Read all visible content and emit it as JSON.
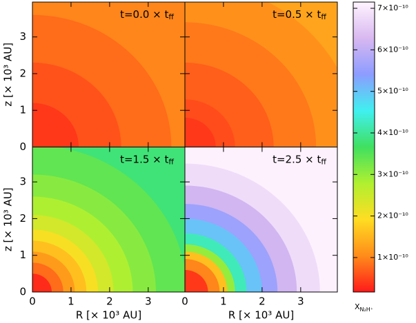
{
  "chart_data": [
    {
      "type": "contour",
      "title": "t=0.0 × t",
      "title_sub": "ff",
      "ylabel": "z  [× 10³ AU]",
      "xlim": [
        0,
        3.95
      ],
      "ylim": [
        0,
        3.95
      ],
      "xticks": [
        0,
        1,
        2,
        3
      ],
      "yticks": [
        0,
        1,
        2,
        3
      ],
      "r": [
        1.2,
        2.3,
        3.6,
        5.6
      ],
      "values": [
        0.4,
        0.6,
        0.8,
        1.0
      ]
    },
    {
      "type": "contour",
      "title": "t=0.5 × t",
      "title_sub": "ff",
      "xlim": [
        0,
        3.95
      ],
      "ylim": [
        0,
        3.95
      ],
      "xticks": [
        0,
        1,
        2,
        3
      ],
      "yticks": [
        0,
        1,
        2,
        3
      ],
      "r": [
        0.8,
        1.3,
        2.3,
        3.4,
        4.5,
        5.6
      ],
      "values": [
        0.4,
        0.55,
        0.7,
        0.9,
        1.1,
        1.3
      ]
    },
    {
      "type": "contour",
      "title": "t=1.5 × t",
      "title_sub": "ff",
      "ylabel": "z  [× 10³ AU]",
      "xlabel": "R  [× 10³ AU]",
      "xlim": [
        0,
        3.95
      ],
      "ylim": [
        0,
        3.95
      ],
      "xticks": [
        0,
        1,
        2,
        3
      ],
      "yticks": [
        0,
        1,
        2,
        3
      ],
      "r": [
        0.5,
        0.8,
        1.1,
        1.4,
        1.7,
        2.1,
        2.6,
        3.2,
        4.0,
        5.6
      ],
      "values": [
        0.3,
        0.8,
        1.2,
        1.6,
        2.0,
        2.4,
        2.8,
        3.1,
        3.4,
        3.8
      ]
    },
    {
      "type": "contour",
      "title": "t=2.5 × t",
      "title_sub": "ff",
      "xlabel": "R  [× 10³ AU]",
      "xlim": [
        0,
        3.95
      ],
      "ylim": [
        0,
        3.95
      ],
      "xticks": [
        0,
        1,
        2,
        3
      ],
      "yticks": [
        0,
        1,
        2,
        3
      ],
      "r": [
        0.6,
        0.9,
        1.1,
        1.3,
        1.6,
        2.0,
        2.4,
        2.9,
        3.5,
        5.6
      ],
      "values": [
        0.4,
        1.0,
        1.6,
        3.0,
        4.2,
        5.0,
        5.6,
        6.2,
        6.8,
        7.1
      ]
    },
    {
      "type": "colorbar",
      "label": "X",
      "label_sub": "N₂H⁺",
      "zlim": [
        0.17,
        7.15
      ],
      "colormap": [
        "#ff1a1a",
        "#ff8c1a",
        "#ffdd22",
        "#b0f030",
        "#40e060",
        "#40f0f0",
        "#8c9cff",
        "#d8b8f0",
        "#fff4ff"
      ],
      "zticks": [
        {
          "value": 1,
          "label": "1×10⁻¹⁰"
        },
        {
          "value": 2,
          "label": "2×10⁻¹⁰"
        },
        {
          "value": 3,
          "label": "3×10⁻¹⁰"
        },
        {
          "value": 4,
          "label": "4×10⁻¹⁰"
        },
        {
          "value": 5,
          "label": "5×10⁻¹⁰"
        },
        {
          "value": 6,
          "label": "6×10⁻¹⁰"
        },
        {
          "value": 7,
          "label": "7×10⁻¹⁰"
        }
      ]
    }
  ]
}
